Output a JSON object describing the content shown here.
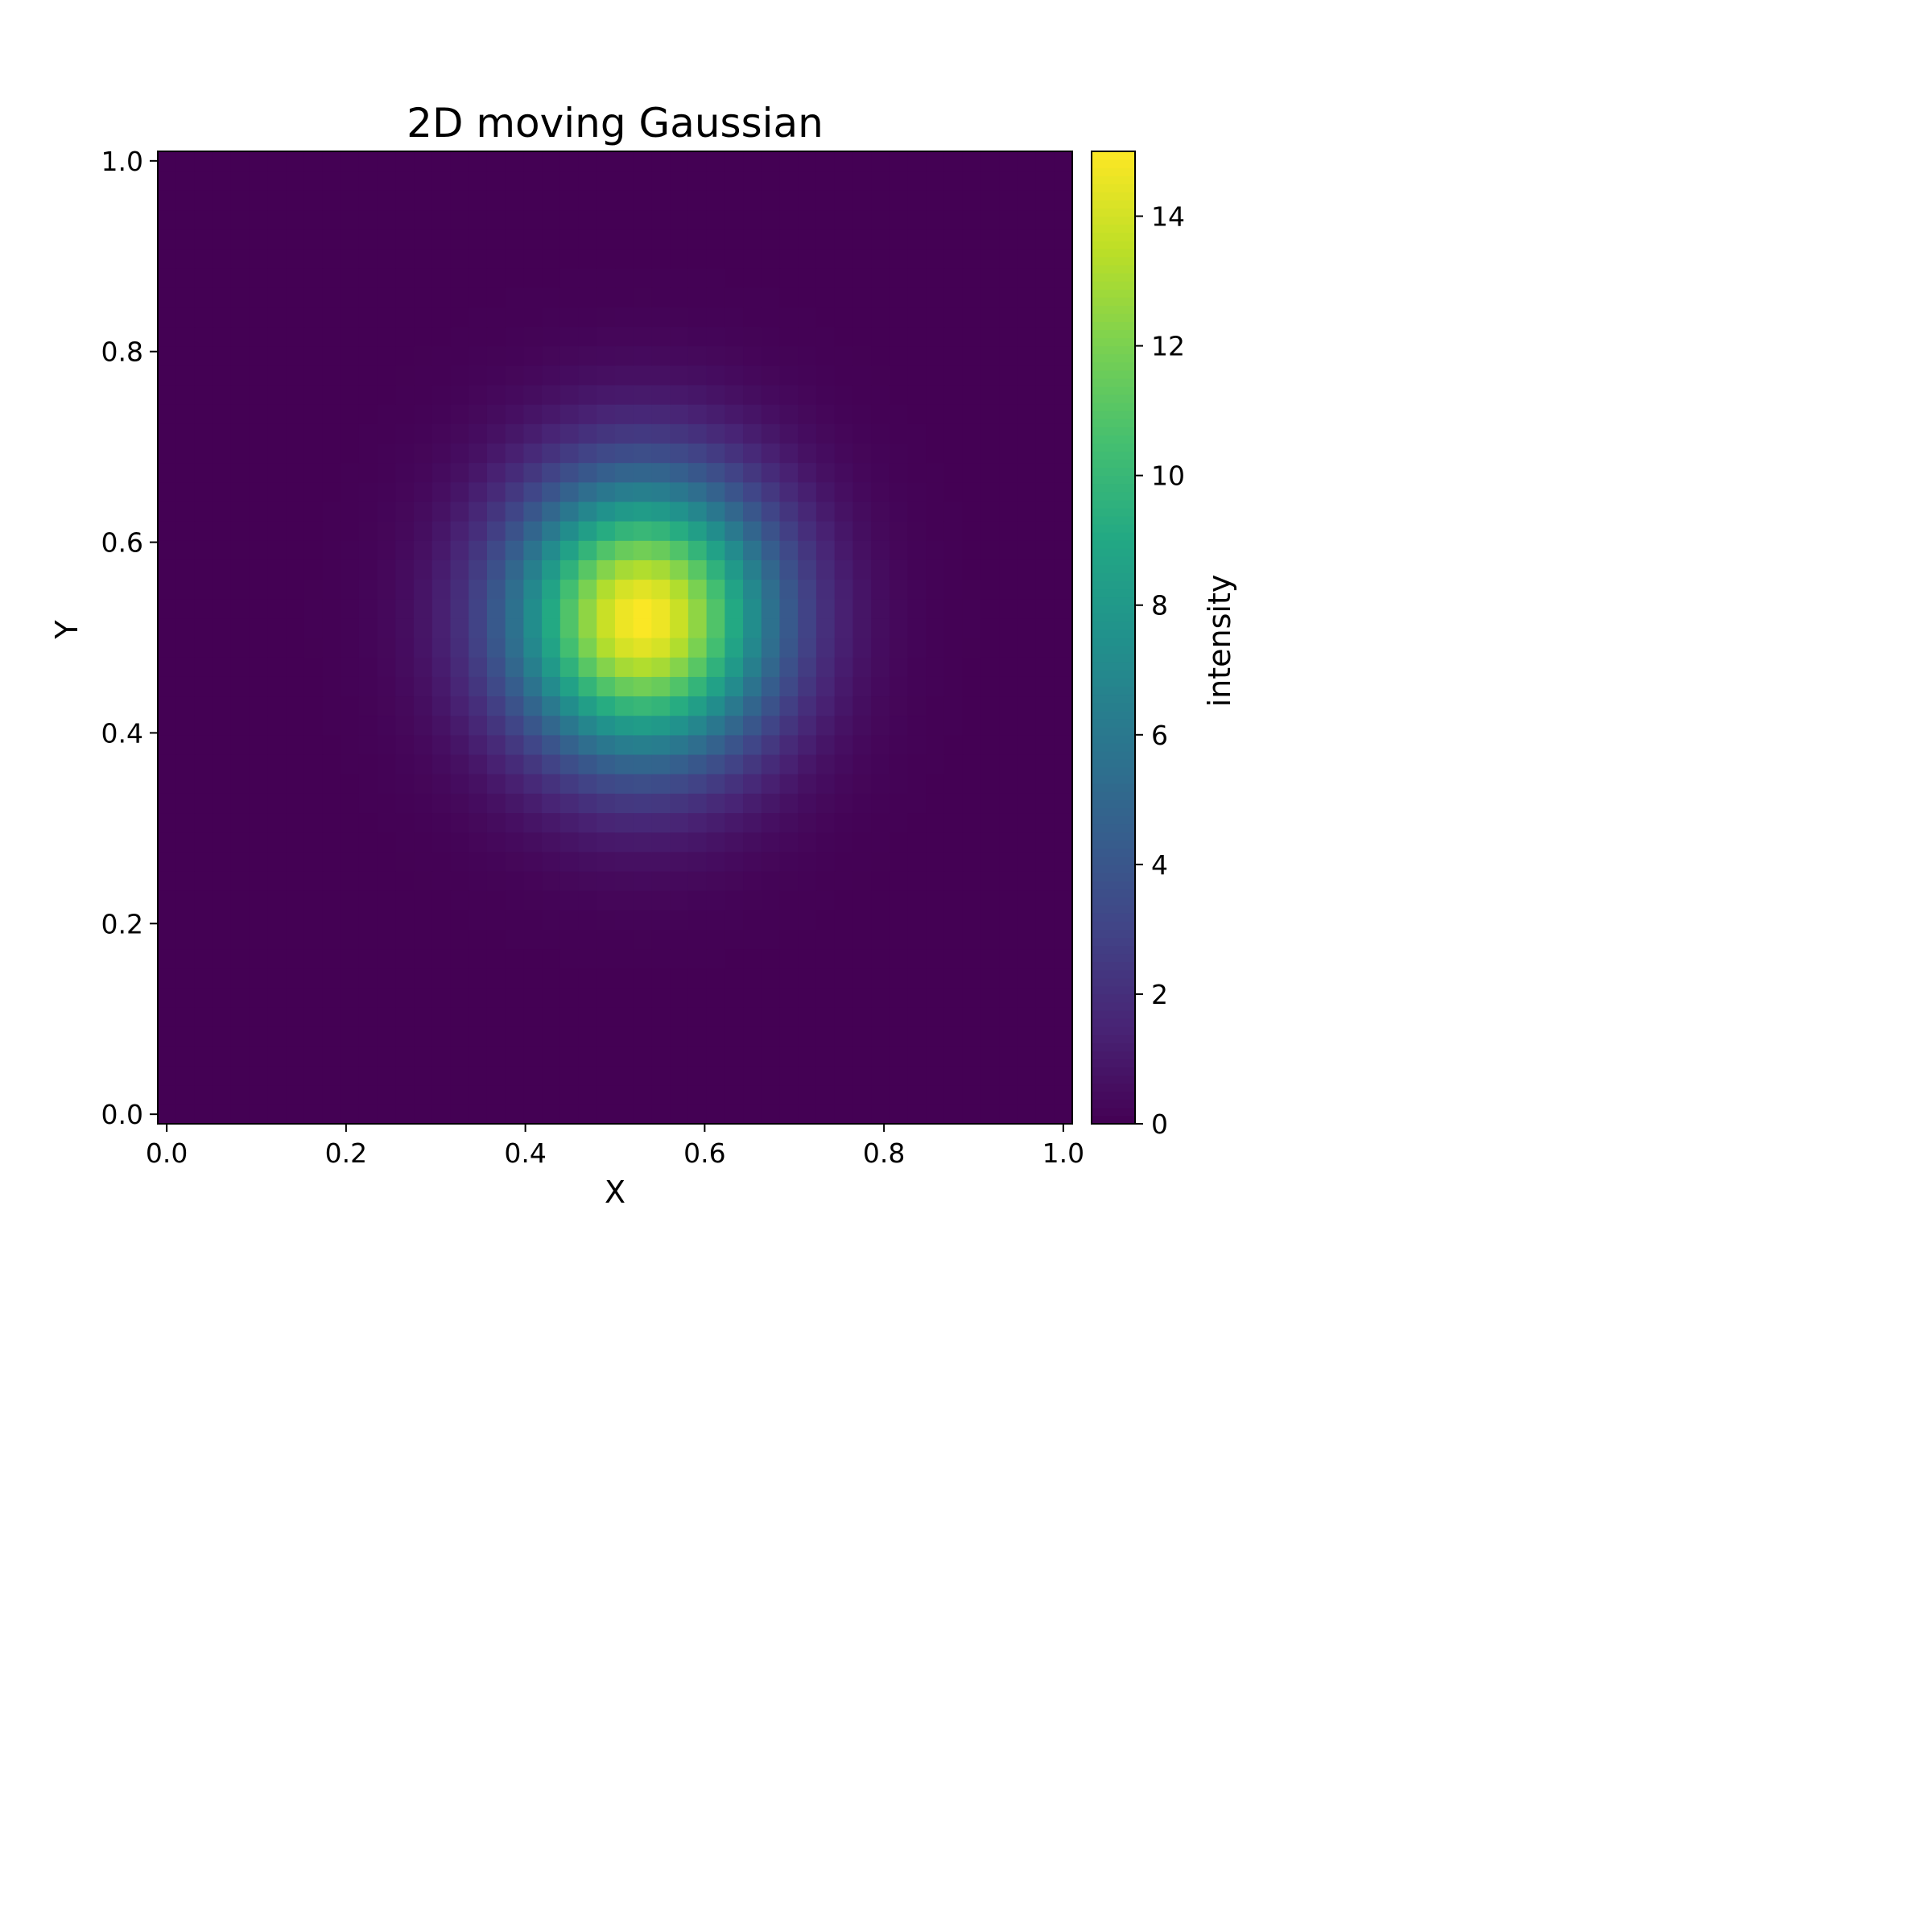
{
  "chart_data": {
    "type": "heatmap",
    "title": "2D moving Gaussian",
    "xlabel": "X",
    "ylabel": "Y",
    "xlim": [
      -0.01,
      1.01
    ],
    "ylim": [
      -0.01,
      1.01
    ],
    "x_ticks": [
      0.0,
      0.2,
      0.4,
      0.6,
      0.8,
      1.0
    ],
    "x_tick_labels": [
      "0.0",
      "0.2",
      "0.4",
      "0.6",
      "0.8",
      "1.0"
    ],
    "y_ticks": [
      0.0,
      0.2,
      0.4,
      0.6,
      0.8,
      1.0
    ],
    "y_tick_labels": [
      "0.0",
      "0.2",
      "0.4",
      "0.6",
      "0.8",
      "1.0"
    ],
    "grid": false,
    "colormap": "viridis",
    "colorbar": {
      "label": "intensity",
      "range": [
        0,
        15
      ],
      "ticks": [
        0,
        2,
        4,
        6,
        8,
        10,
        12,
        14
      ],
      "tick_labels": [
        "0",
        "2",
        "4",
        "6",
        "8",
        "10",
        "12",
        "14"
      ]
    },
    "field": {
      "grid_cells": 50,
      "peak_value": 15,
      "center": [
        0.53,
        0.52
      ],
      "sigma_x": 0.1,
      "sigma_y": 0.1
    }
  }
}
